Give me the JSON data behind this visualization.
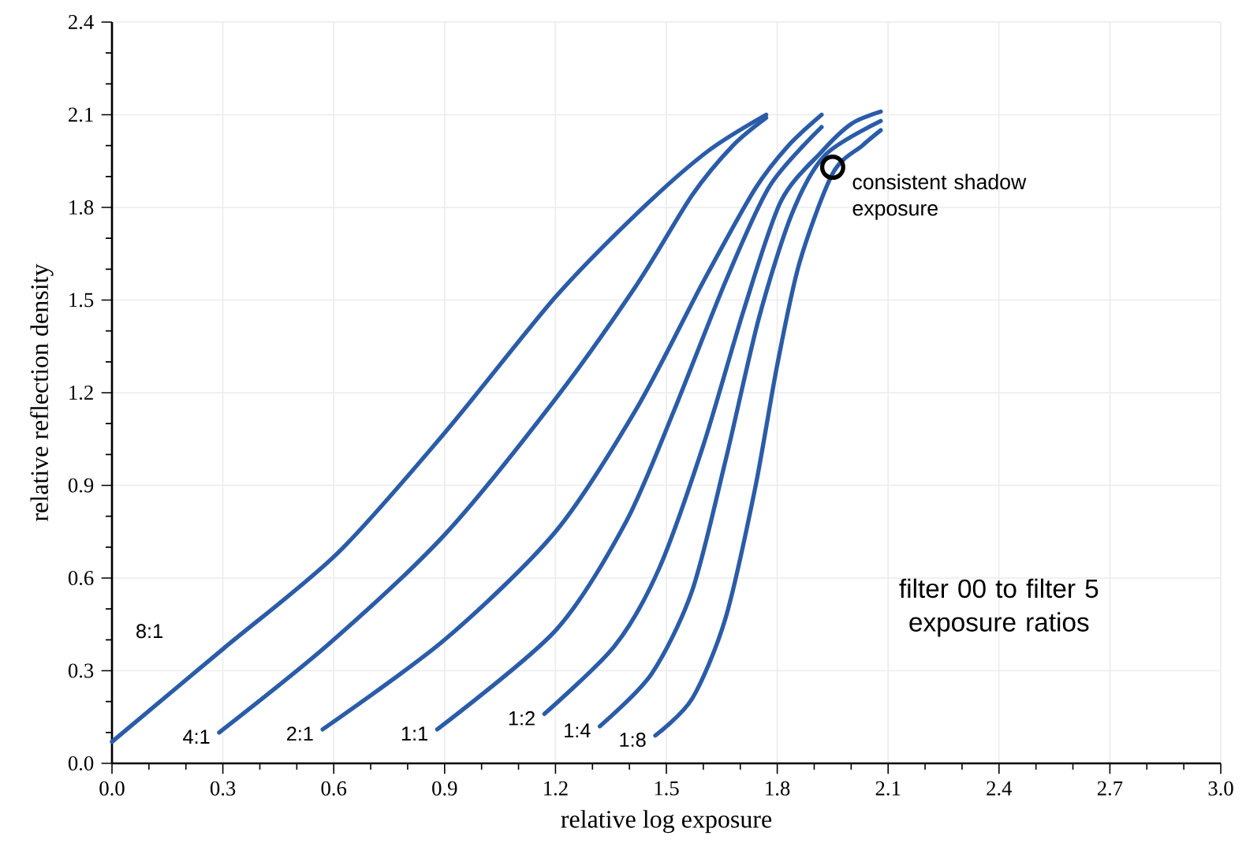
{
  "chart_data": {
    "type": "line",
    "xlabel": "relative log exposure",
    "ylabel": "relative reflection density",
    "xlim": [
      0,
      3.0
    ],
    "ylim": [
      0,
      2.4
    ],
    "xticks": [
      {
        "value": 0,
        "label": "0.0"
      },
      0.3,
      0.6,
      0.9,
      1.2,
      1.5,
      1.8,
      2.1,
      2.4,
      2.7,
      {
        "value": 3.0,
        "label": "3.0"
      }
    ],
    "yticks": [
      {
        "value": 0,
        "label": "0.0"
      },
      0.3,
      0.6,
      0.9,
      1.2,
      1.5,
      1.8,
      2.1,
      2.4
    ],
    "grid": true,
    "series": [
      {
        "name": "8:1",
        "color": "#2a5ca8",
        "x": [
          0,
          0.3,
          0.61,
          0.9,
          1.2,
          1.42,
          1.61,
          1.77
        ],
        "values": [
          0.07,
          0.37,
          0.68,
          1.07,
          1.51,
          1.78,
          1.98,
          2.1
        ]
      },
      {
        "name": "4:1",
        "color": "#2a5ca8",
        "x": [
          0.29,
          0.59,
          0.9,
          1.2,
          1.42,
          1.57,
          1.68,
          1.77
        ],
        "values": [
          0.1,
          0.39,
          0.74,
          1.18,
          1.55,
          1.84,
          2.0,
          2.09
        ]
      },
      {
        "name": "2:1",
        "color": "#2a5ca8",
        "x": [
          0.57,
          0.9,
          1.2,
          1.42,
          1.6,
          1.74,
          1.83,
          1.92
        ],
        "values": [
          0.11,
          0.4,
          0.75,
          1.15,
          1.56,
          1.86,
          2.0,
          2.1
        ]
      },
      {
        "name": "1:1",
        "color": "#2a5ca8",
        "x": [
          0.88,
          1.2,
          1.39,
          1.52,
          1.66,
          1.78,
          1.92
        ],
        "values": [
          0.11,
          0.43,
          0.78,
          1.14,
          1.56,
          1.87,
          2.06
        ]
      },
      {
        "name": "1:2",
        "color": "#2a5ca8",
        "x": [
          1.17,
          1.36,
          1.48,
          1.6,
          1.71,
          1.81,
          1.92,
          2.0,
          2.08
        ],
        "values": [
          0.16,
          0.38,
          0.63,
          1.03,
          1.47,
          1.82,
          1.98,
          2.07,
          2.11
        ]
      },
      {
        "name": "1:4",
        "color": "#2a5ca8",
        "x": [
          1.32,
          1.46,
          1.57,
          1.66,
          1.75,
          1.84,
          1.93,
          2.08
        ],
        "values": [
          0.12,
          0.29,
          0.56,
          0.98,
          1.44,
          1.78,
          1.97,
          2.08
        ]
      },
      {
        "name": "1:8",
        "color": "#2a5ca8",
        "x": [
          1.47,
          1.57,
          1.66,
          1.74,
          1.8,
          1.86,
          1.95,
          2.03,
          2.08
        ],
        "values": [
          0.09,
          0.21,
          0.47,
          0.89,
          1.29,
          1.62,
          1.91,
          2.0,
          2.05
        ]
      }
    ],
    "annotations": [
      {
        "text": "consistent shadow exposure",
        "x": 1.95,
        "y": 1.93
      },
      "filter 00 to filter 5 exposure ratios"
    ]
  }
}
